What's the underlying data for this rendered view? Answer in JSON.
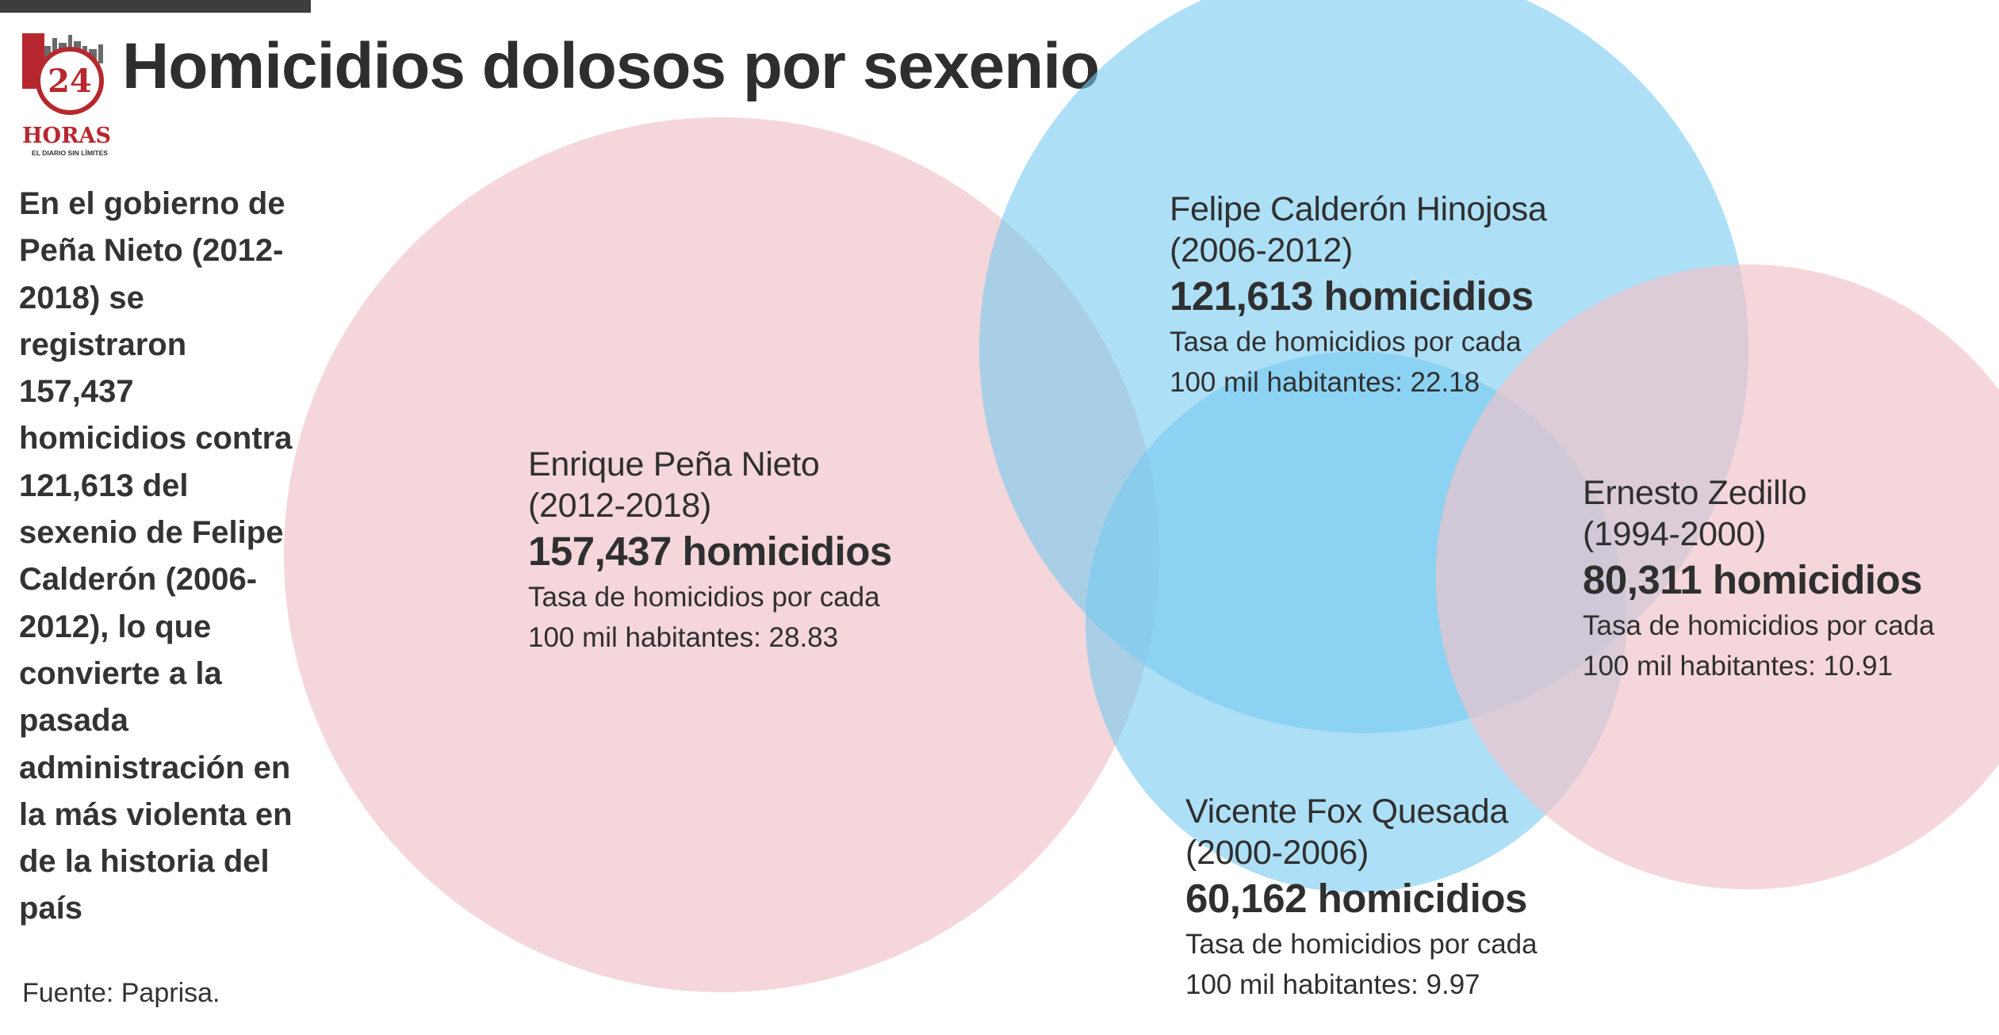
{
  "brand": {
    "logo_number": "24",
    "logo_name": "HORAS",
    "logo_tagline": "EL DIARIO SIN LÍMITES"
  },
  "header": {
    "title": "Homicidios dolosos por sexenio"
  },
  "intro": {
    "text": "En el gobierno de Peña Nieto (2012-2018) se registraron 157,437 homicidios contra 121,613 del sexenio de Felipe Calderón (2006-2012), lo que convierte a la pasada administración en la más violenta en de la historia del país"
  },
  "footer": {
    "source": "Fuente: Paprisa."
  },
  "chart_data": {
    "type": "bubble",
    "title": "Homicidios dolosos por sexenio",
    "value_label": "homicidios",
    "colors": {
      "pink": "#f0c2c8",
      "blue": "#77c9f0"
    },
    "series": [
      {
        "president": "Enrique Peña Nieto",
        "period": "(2012-2018)",
        "homicides": 157437,
        "homicides_label": "157,437 homicidios",
        "rate": 28.83,
        "rate_label_line1": "Tasa de homicidios por cada",
        "rate_label_line2": "100 mil habitantes: 28.83",
        "color": "#f0c2c8",
        "opacity": 0.68
      },
      {
        "president": "Felipe Calderón Hinojosa",
        "period": "(2006-2012)",
        "homicides": 121613,
        "homicides_label": "121,613 homicidios",
        "rate": 22.18,
        "rate_label_line1": "Tasa de homicidios por cada",
        "rate_label_line2": "100 mil habitantes: 22.18",
        "color": "#77c9f0",
        "opacity": 0.6
      },
      {
        "president": "Vicente Fox Quesada",
        "period": "(2000-2006)",
        "homicides": 60162,
        "homicides_label": "60,162 homicidios",
        "rate": 9.97,
        "rate_label_line1": "Tasa de homicidios por cada",
        "rate_label_line2": "100 mil habitantes: 9.97",
        "color": "#77c9f0",
        "opacity": 0.6
      },
      {
        "president": "Ernesto Zedillo",
        "period": "(1994-2000)",
        "homicides": 80311,
        "homicides_label": "80,311 homicidios",
        "rate": 10.91,
        "rate_label_line1": "Tasa de homicidios por cada",
        "rate_label_line2": "100 mil habitantes: 10.91",
        "color": "#f0c2c8",
        "opacity": 0.68
      }
    ]
  }
}
